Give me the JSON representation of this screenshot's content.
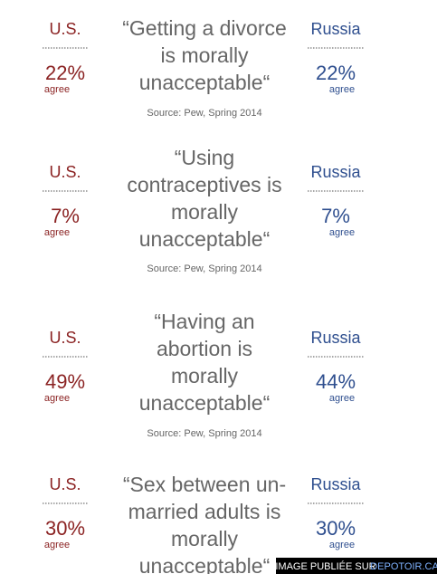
{
  "panels": [
    {
      "left": {
        "country": "U.S.",
        "value": "22%",
        "caption": "agree"
      },
      "quote": [
        "“Getting a divorce",
        "is morally",
        "unacceptable“"
      ],
      "source": "Source: Pew, Spring 2014",
      "right": {
        "country": "Russia",
        "value": "22%",
        "caption": "agree"
      }
    },
    {
      "left": {
        "country": "U.S.",
        "value": "7%",
        "caption": "agree"
      },
      "quote": [
        "“Using",
        "contraceptives is",
        "morally",
        "unacceptable“"
      ],
      "source": "Source: Pew, Spring 2014",
      "right": {
        "country": "Russia",
        "value": "7%",
        "caption": "agree"
      }
    },
    {
      "left": {
        "country": "U.S.",
        "value": "49%",
        "caption": "agree"
      },
      "quote": [
        "“Having an",
        "abortion is",
        "morally",
        "unacceptable“"
      ],
      "source": "Source: Pew, Spring 2014",
      "right": {
        "country": "Russia",
        "value": "44%",
        "caption": "agree"
      }
    },
    {
      "left": {
        "country": "U.S.",
        "value": "30%",
        "caption": "agree"
      },
      "quote": [
        "“Sex between un-",
        "married adults is",
        "morally",
        "unacceptable“"
      ],
      "right": {
        "country": "Russia",
        "value": "30%",
        "caption": "agree"
      }
    }
  ],
  "banner": {
    "label": "IMAGE PUBLIÉE SUR",
    "link": "DEPOTOIR.CA"
  }
}
